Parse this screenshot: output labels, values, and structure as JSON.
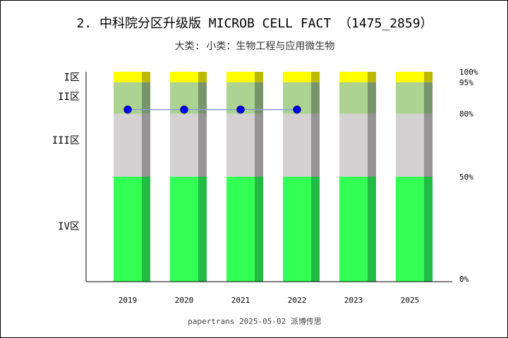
{
  "chart_data": {
    "type": "bar",
    "title": "2. 中科院分区升级版 MICROB CELL FACT （1475_2859）",
    "subtitle": "大类:  小类：生物工程与应用微生物",
    "categories": [
      "2019",
      "2020",
      "2021",
      "2022",
      "2023",
      "2025"
    ],
    "stack_bands": [
      {
        "name": "IV区",
        "from": 0,
        "to": 50,
        "color": "#33ff55",
        "shade": "#22bb44"
      },
      {
        "name": "III区",
        "from": 50,
        "to": 80,
        "color": "#d3d1d2",
        "shade": "#969495"
      },
      {
        "name": "II区",
        "from": 80,
        "to": 95,
        "color": "#acd392",
        "shade": "#78946a"
      },
      {
        "name": "I区",
        "from": 95,
        "to": 100,
        "color": "#ffff00",
        "shade": "#bbb800"
      }
    ],
    "zone_labels": [
      {
        "label": "I区",
        "value": 97.5
      },
      {
        "label": "II区",
        "value": 88.3
      },
      {
        "label": "III区",
        "value": 67.5
      },
      {
        "label": "IV区",
        "value": 26.5
      }
    ],
    "percent_ticks": [
      {
        "label": "100%",
        "value": 100
      },
      {
        "label": "95%",
        "value": 95
      },
      {
        "label": "80%",
        "value": 80
      },
      {
        "label": "50%",
        "value": 50
      },
      {
        "label": "0%",
        "value": 0
      }
    ],
    "series": [
      {
        "values": [
          82,
          82,
          82,
          82,
          null,
          null
        ],
        "color": "#0000ee",
        "line_color": "#8899dd"
      }
    ],
    "ylim": [
      0,
      100
    ],
    "footer": "papertrans 2025-05-02 派博传思"
  }
}
